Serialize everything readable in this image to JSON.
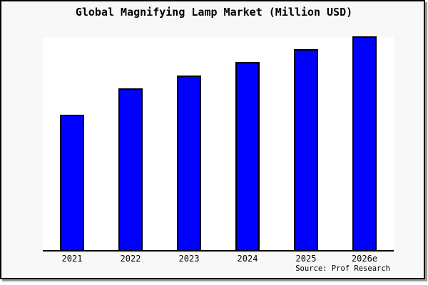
{
  "window": {
    "background_color": "#f8f8f8",
    "frame_border_color": "#000000",
    "frame_shadow_color": "#999999"
  },
  "chart_data": {
    "type": "bar",
    "title": "Global Magnifying Lamp Market (Million USD)",
    "categories": [
      "2021",
      "2022",
      "2023",
      "2024",
      "2025",
      "2026e"
    ],
    "values_relative_pct": [
      62.8,
      75.1,
      81.4,
      87.5,
      93.6,
      99.8
    ],
    "value_axis_note": "y-axis is unlabeled: no ticks, gridlines or value labels are shown; values are estimated as percent of the tallest bar (2026e = 100)",
    "xlabel": "",
    "ylabel": "",
    "grid": false,
    "legend": "none",
    "bar_color": "#0000ff",
    "bar_edge_color": "#000000",
    "plot_background": "#ffffff",
    "source_note": "Source: Prof Research"
  }
}
